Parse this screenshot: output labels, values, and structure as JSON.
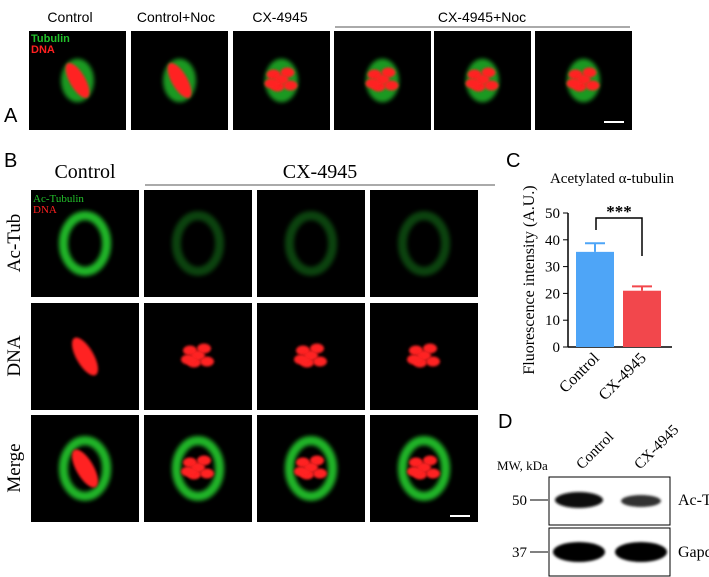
{
  "panel_a": {
    "label": "A",
    "headers": [
      "Control",
      "Control+Noc",
      "CX-4945",
      "CX-4945+Noc"
    ],
    "legend": [
      "Tubulin",
      "DNA"
    ]
  },
  "panel_b": {
    "label": "B",
    "headers": [
      "Control",
      "CX-4945"
    ],
    "legend": [
      "Ac-Tubulin",
      "DNA"
    ],
    "rows": [
      "Ac-Tub",
      "DNA",
      "Merge"
    ]
  },
  "chart_data": {
    "type": "bar",
    "panel_label": "C",
    "title": "Acetylated α-tubulin",
    "y_label": "Fluorescence intensity (A.U.)",
    "categories": [
      "Control",
      "CX-4945"
    ],
    "values": [
      35.5,
      21
    ],
    "errors": [
      3.2,
      1.6
    ],
    "colors": [
      "#4ea5f7",
      "#f2474c"
    ],
    "annotation": "***",
    "ylim": [
      0,
      50
    ],
    "yticks": [
      0,
      10,
      20,
      30,
      40,
      50
    ]
  },
  "panel_d": {
    "label": "D",
    "mw_label": "MW, kDa",
    "lanes": [
      "Control",
      "CX-4945"
    ],
    "markers": [
      "50",
      "37"
    ],
    "bands": [
      "Ac-Tub",
      "Gapdh"
    ]
  }
}
